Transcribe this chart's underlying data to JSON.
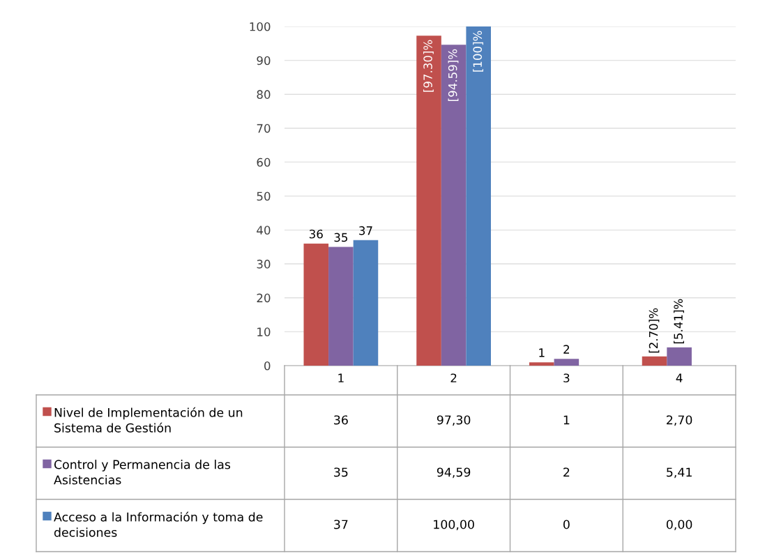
{
  "chart_data": {
    "type": "bar",
    "categories": [
      "1",
      "2",
      "3",
      "4"
    ],
    "series": [
      {
        "name": "Nivel de Implementación de un Sistema de Gestión",
        "color": "#c0504d",
        "values": [
          36,
          97.3,
          1,
          2.7
        ],
        "value_labels": [
          "36",
          "[97.30]%",
          "1",
          "[2.70]%"
        ]
      },
      {
        "name": "Control y Permanencia de las Asistencias",
        "color": "#8064a2",
        "values": [
          35,
          94.59,
          2,
          5.41
        ],
        "value_labels": [
          "35",
          "[94.59]%",
          "2",
          "[5.41]%"
        ]
      },
      {
        "name": "Acceso a la Información y toma de decisiones",
        "color": "#4f81bd",
        "values": [
          37,
          100.0,
          0,
          0.0
        ],
        "value_labels": [
          "37",
          "[100]%",
          null,
          null
        ]
      }
    ],
    "cell_labels": [
      [
        "36",
        "97,30",
        "1",
        "2,70"
      ],
      [
        "35",
        "94,59",
        "2",
        "5,41"
      ],
      [
        "37",
        "100,00",
        "0",
        "0,00"
      ]
    ],
    "ylim": [
      0,
      100
    ],
    "yticks": [
      0,
      10,
      20,
      30,
      40,
      50,
      60,
      70,
      80,
      90,
      100
    ],
    "grid": "y",
    "legend": "bottom"
  }
}
